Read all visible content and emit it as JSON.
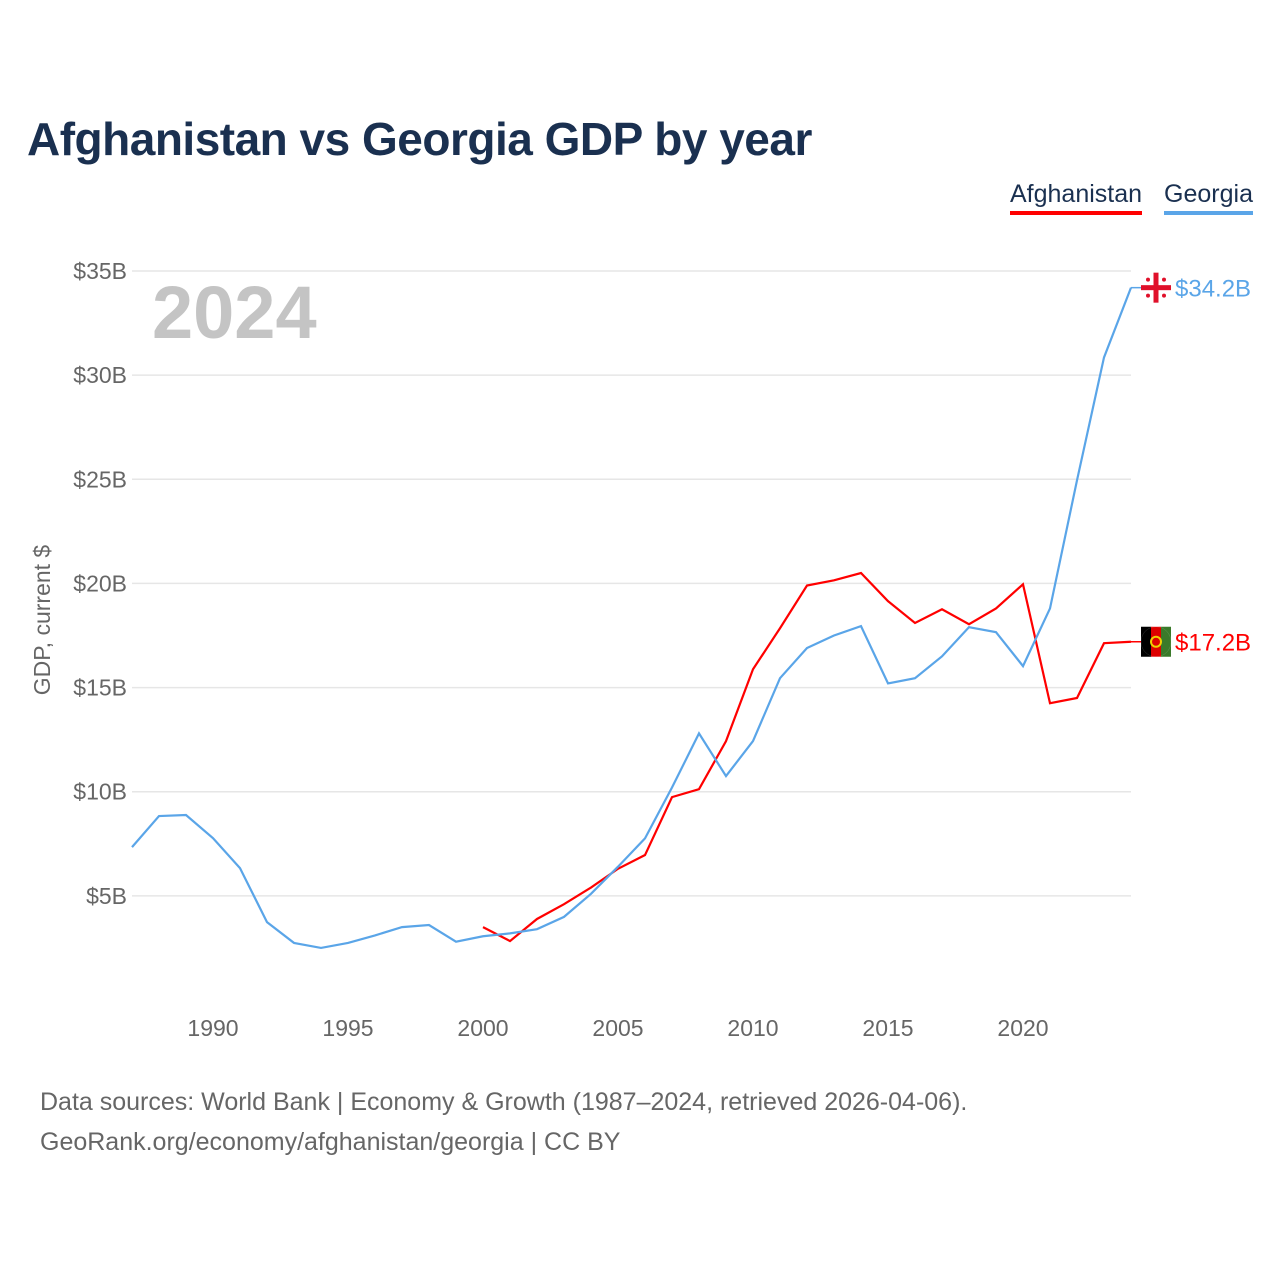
{
  "chart_data": {
    "type": "line",
    "title": "Afghanistan vs Georgia GDP by year",
    "ylabel": "GDP, current $",
    "xlabel": "",
    "year_watermark": "2024",
    "xlim": [
      1987,
      2024
    ],
    "ylim": [
      0,
      35
    ],
    "x_ticks": [
      1990,
      1995,
      2000,
      2005,
      2010,
      2015,
      2020
    ],
    "y_ticks": [
      5,
      10,
      15,
      20,
      25,
      30,
      35
    ],
    "y_tick_labels": [
      "$5B",
      "$10B",
      "$15B",
      "$20B",
      "$25B",
      "$30B",
      "$35B"
    ],
    "grid": true,
    "legend_position": "top-right",
    "series": [
      {
        "name": "Afghanistan",
        "color": "#ff0000",
        "end_label": "$17.2B",
        "flag": "afghanistan-flag",
        "x": [
          2000,
          2001,
          2002,
          2003,
          2004,
          2005,
          2006,
          2007,
          2008,
          2009,
          2010,
          2011,
          2012,
          2013,
          2014,
          2015,
          2016,
          2017,
          2018,
          2019,
          2020,
          2021,
          2022,
          2023,
          2024
        ],
        "values": [
          3.5,
          2.83,
          3.89,
          4.6,
          5.4,
          6.3,
          6.96,
          9.74,
          10.12,
          12.43,
          15.88,
          17.85,
          19.9,
          20.15,
          20.5,
          19.15,
          18.1,
          18.76,
          18.04,
          18.8,
          19.96,
          14.25,
          14.5,
          17.13,
          17.2
        ]
      },
      {
        "name": "Georgia",
        "color": "#5aa5e8",
        "end_label": "$34.2B",
        "flag": "georgia-flag",
        "x": [
          1987,
          1988,
          1989,
          1990,
          1991,
          1992,
          1993,
          1994,
          1995,
          1996,
          1997,
          1998,
          1999,
          2000,
          2001,
          2002,
          2003,
          2004,
          2005,
          2006,
          2007,
          2008,
          2009,
          2010,
          2011,
          2012,
          2013,
          2014,
          2015,
          2016,
          2017,
          2018,
          2019,
          2020,
          2021,
          2022,
          2023,
          2024
        ],
        "values": [
          7.34,
          8.83,
          8.88,
          7.77,
          6.33,
          3.74,
          2.74,
          2.5,
          2.74,
          3.1,
          3.5,
          3.6,
          2.8,
          3.06,
          3.2,
          3.4,
          3.99,
          5.1,
          6.4,
          7.76,
          10.2,
          12.8,
          10.75,
          12.43,
          15.45,
          16.9,
          17.5,
          17.95,
          15.2,
          15.45,
          16.5,
          17.9,
          17.66,
          16.03,
          18.8,
          24.95,
          30.85,
          34.2
        ]
      }
    ]
  },
  "footer": {
    "line1": "Data sources: World Bank | Economy & Growth (1987–2024, retrieved 2026-04-06).",
    "line2": "GeoRank.org/economy/afghanistan/georgia | CC BY"
  }
}
